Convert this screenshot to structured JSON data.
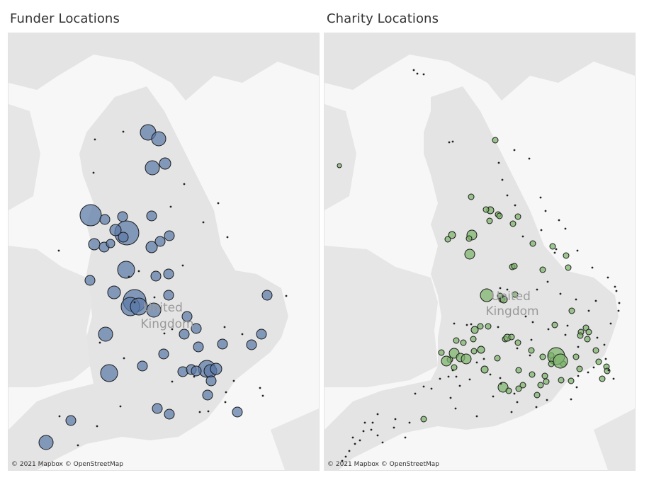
{
  "panels": {
    "left": {
      "title": "Funder Locations",
      "attribution": "© 2021 Mapbox  © OpenStreetMap",
      "country_label_1": "United",
      "country_label_2": "Kingdom"
    },
    "right": {
      "title": "Charity Locations",
      "attribution": "© 2021 Mapbox  © OpenStreetMap",
      "country_label_1": "United",
      "country_label_2": "Kingdom"
    }
  },
  "colors": {
    "background": "#ffffff",
    "sea": "#f7f7f7",
    "land": "#e4e4e4",
    "funder_marker": "#5b7aa8",
    "charity_marker": "#7bb36a",
    "marker_outline": "#1a1a1a",
    "label": "#9a9a9a"
  },
  "icons": {
    "marker": "circle-marker-icon"
  }
}
